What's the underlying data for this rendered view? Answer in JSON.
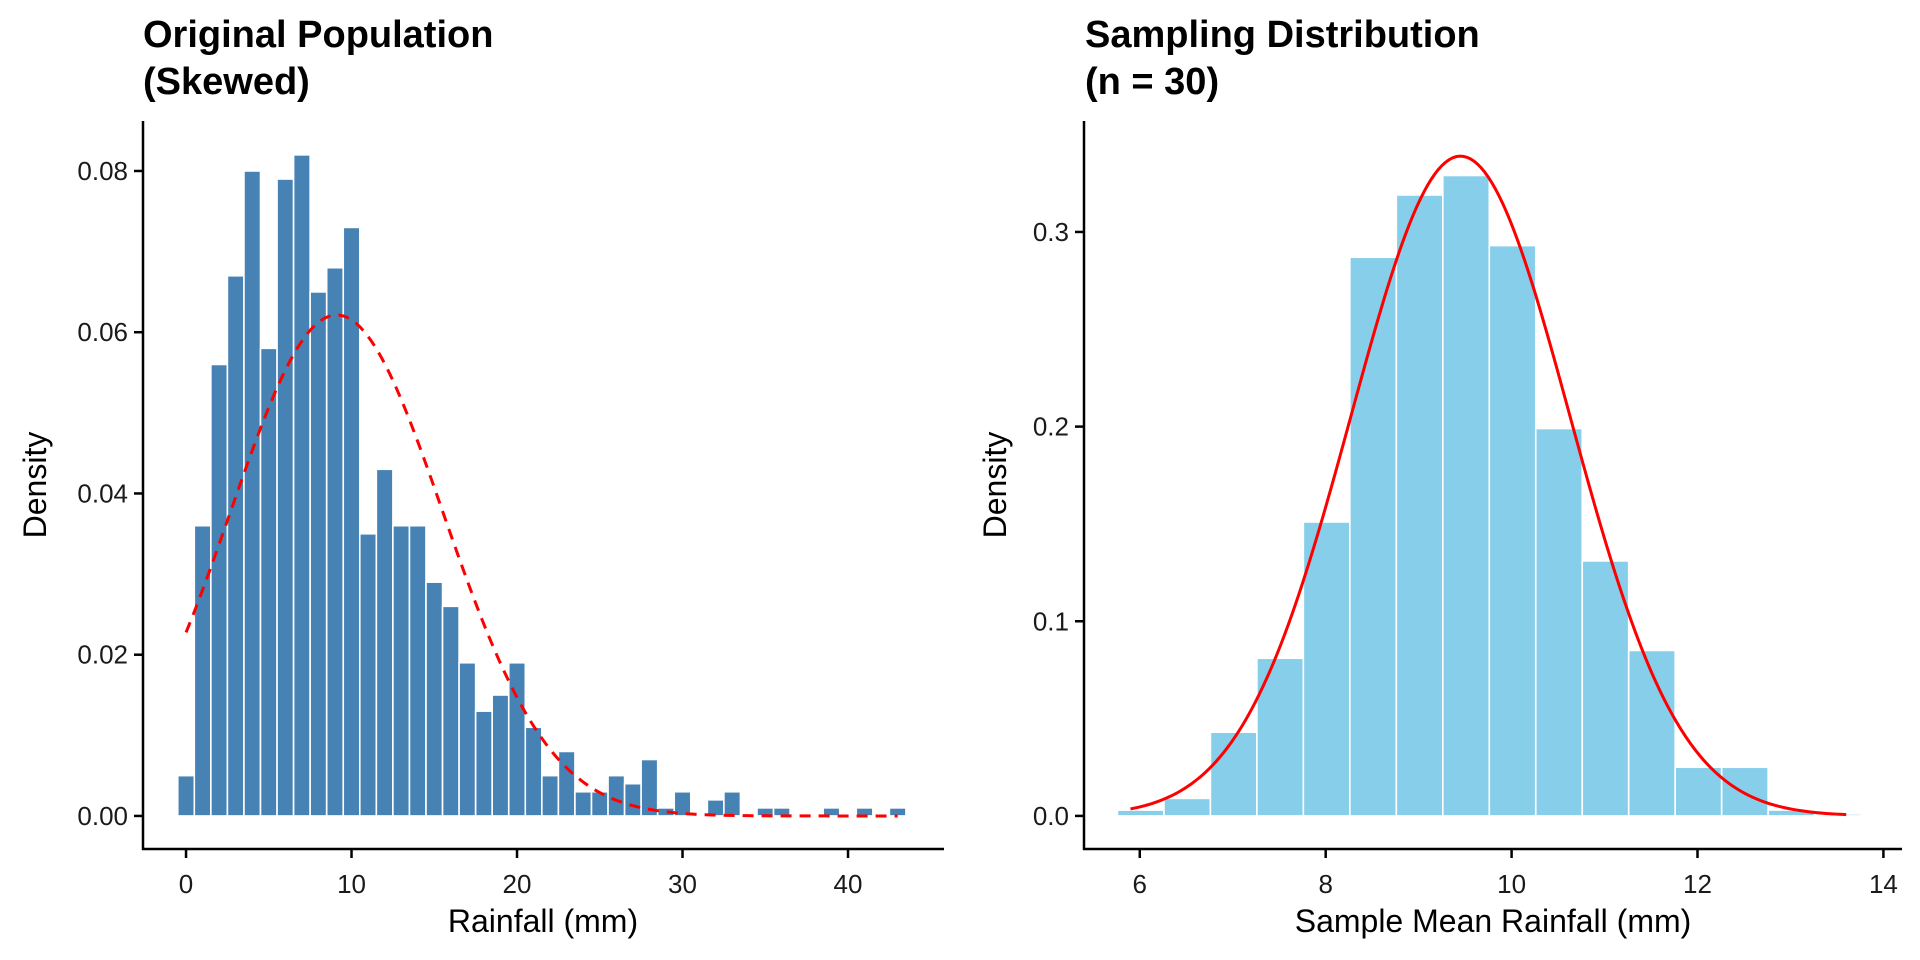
{
  "chart_data": [
    {
      "type": "bar",
      "subtype": "histogram",
      "title": "Original Population\n(Skewed)",
      "title_lines": [
        "Original Population",
        "(Skewed)"
      ],
      "xlabel": "Rainfall (mm)",
      "ylabel": "Density",
      "xlim": [
        -2.6,
        45.8
      ],
      "ylim": [
        -0.0041,
        0.0862
      ],
      "x_ticks": [
        0,
        10,
        20,
        30,
        40
      ],
      "x_tick_labels": [
        "0",
        "10",
        "20",
        "30",
        "40"
      ],
      "y_ticks": [
        0.0,
        0.02,
        0.04,
        0.06,
        0.08
      ],
      "y_tick_labels": [
        "0.00",
        "0.02",
        "0.04",
        "0.06",
        "0.08"
      ],
      "grid": false,
      "bin_width": 1,
      "bar_color": "#4682B4",
      "bar_outline": "#ffffff",
      "bins": [
        {
          "x": 0,
          "density": 0.005
        },
        {
          "x": 1,
          "density": 0.036
        },
        {
          "x": 2,
          "density": 0.056
        },
        {
          "x": 3,
          "density": 0.067
        },
        {
          "x": 4,
          "density": 0.08
        },
        {
          "x": 5,
          "density": 0.058
        },
        {
          "x": 6,
          "density": 0.079
        },
        {
          "x": 7,
          "density": 0.082
        },
        {
          "x": 8,
          "density": 0.065
        },
        {
          "x": 9,
          "density": 0.068
        },
        {
          "x": 10,
          "density": 0.073
        },
        {
          "x": 11,
          "density": 0.035
        },
        {
          "x": 12,
          "density": 0.043
        },
        {
          "x": 13,
          "density": 0.036
        },
        {
          "x": 14,
          "density": 0.036
        },
        {
          "x": 15,
          "density": 0.029
        },
        {
          "x": 16,
          "density": 0.026
        },
        {
          "x": 17,
          "density": 0.019
        },
        {
          "x": 18,
          "density": 0.013
        },
        {
          "x": 19,
          "density": 0.015
        },
        {
          "x": 20,
          "density": 0.019
        },
        {
          "x": 21,
          "density": 0.011
        },
        {
          "x": 22,
          "density": 0.005
        },
        {
          "x": 23,
          "density": 0.008
        },
        {
          "x": 24,
          "density": 0.003
        },
        {
          "x": 25,
          "density": 0.003
        },
        {
          "x": 26,
          "density": 0.005
        },
        {
          "x": 27,
          "density": 0.004
        },
        {
          "x": 28,
          "density": 0.007
        },
        {
          "x": 29,
          "density": 0.001
        },
        {
          "x": 30,
          "density": 0.003
        },
        {
          "x": 32,
          "density": 0.002
        },
        {
          "x": 33,
          "density": 0.003
        },
        {
          "x": 35,
          "density": 0.001
        },
        {
          "x": 36,
          "density": 0.001
        },
        {
          "x": 39,
          "density": 0.001
        },
        {
          "x": 41,
          "density": 0.001
        },
        {
          "x": 43,
          "density": 0.001
        }
      ],
      "overlay": {
        "type": "normal-curve",
        "style": "dashed",
        "color": "#FF0000",
        "mean": 9.1,
        "sd": 6.42,
        "x_range": [
          0,
          43
        ]
      }
    },
    {
      "type": "bar",
      "subtype": "histogram",
      "title": "Sampling Distribution\n(n = 30)",
      "title_lines": [
        "Sampling Distribution",
        "(n = 30)"
      ],
      "xlabel": "Sample Mean Rainfall (mm)",
      "ylabel": "Density",
      "xlim": [
        5.4,
        14.2
      ],
      "ylim": [
        -0.017,
        0.357
      ],
      "x_ticks": [
        6,
        8,
        10,
        12,
        14
      ],
      "x_tick_labels": [
        "6",
        "8",
        "10",
        "12",
        "14"
      ],
      "y_ticks": [
        0.0,
        0.1,
        0.2,
        0.3
      ],
      "y_tick_labels": [
        "0.0",
        "0.1",
        "0.2",
        "0.3"
      ],
      "grid": false,
      "bin_width": 0.5,
      "bar_color": "#87CEEB",
      "bar_outline": "#ffffff",
      "bins": [
        {
          "x0": 5.76,
          "density": 0.003
        },
        {
          "x0": 6.26,
          "density": 0.009
        },
        {
          "x0": 6.76,
          "density": 0.043
        },
        {
          "x0": 7.26,
          "density": 0.081
        },
        {
          "x0": 7.76,
          "density": 0.151
        },
        {
          "x0": 8.26,
          "density": 0.287
        },
        {
          "x0": 8.76,
          "density": 0.319
        },
        {
          "x0": 9.26,
          "density": 0.329
        },
        {
          "x0": 9.76,
          "density": 0.293
        },
        {
          "x0": 10.26,
          "density": 0.199
        },
        {
          "x0": 10.76,
          "density": 0.131
        },
        {
          "x0": 11.26,
          "density": 0.085
        },
        {
          "x0": 11.76,
          "density": 0.025
        },
        {
          "x0": 12.26,
          "density": 0.025
        },
        {
          "x0": 12.76,
          "density": 0.003
        },
        {
          "x0": 13.26,
          "density": 0.001
        }
      ],
      "overlay": {
        "type": "normal-curve",
        "style": "solid",
        "color": "#FF0000",
        "mean": 9.45,
        "sd": 1.177,
        "x_range": [
          5.9,
          13.6
        ]
      }
    }
  ]
}
